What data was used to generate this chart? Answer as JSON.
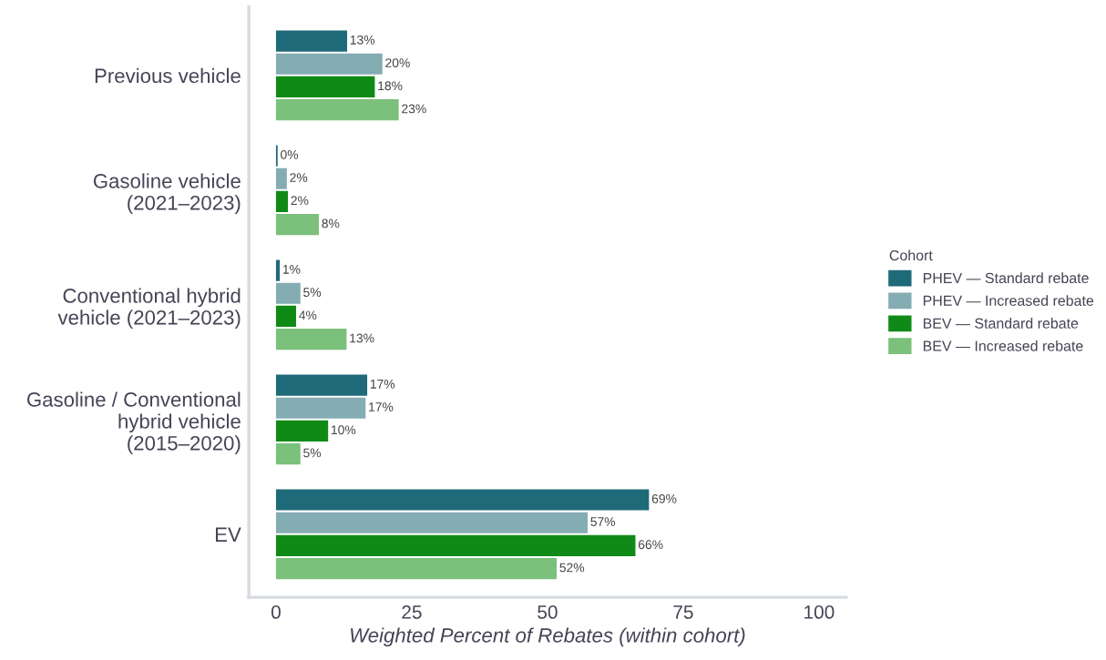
{
  "chart_data": {
    "type": "bar",
    "orientation": "horizontal",
    "xlabel": "Weighted Percent of Rebates (within cohort)",
    "legend_title": "Cohort",
    "legend": "right",
    "categories": [
      "Previous vehicle",
      "Gasoline vehicle\n(2021–2023)",
      "Conventional hybrid\nvehicle (2021–2023)",
      "Gasoline / Conventional\nhybrid vehicle\n(2015–2020)",
      "EV"
    ],
    "xlim": [
      -5,
      105
    ],
    "xticks": [
      0,
      25,
      50,
      75,
      100
    ],
    "grid": false,
    "series": [
      {
        "name": "PHEV — Standard rebate",
        "color": "#1f6a78",
        "values": [
          13.1,
          0.3,
          0.7,
          16.8,
          68.7
        ],
        "value_labels": [
          "13%",
          "0%",
          "1%",
          "17%",
          "69%"
        ]
      },
      {
        "name": "PHEV — Increased rebate",
        "color": "#84acb3",
        "values": [
          19.6,
          2.0,
          4.5,
          16.5,
          57.4
        ],
        "value_labels": [
          "20%",
          "2%",
          "5%",
          "17%",
          "57%"
        ]
      },
      {
        "name": "BEV — Standard rebate",
        "color": "#108a17",
        "values": [
          18.2,
          2.2,
          3.7,
          9.6,
          66.2
        ],
        "value_labels": [
          "18%",
          "2%",
          "4%",
          "10%",
          "66%"
        ]
      },
      {
        "name": "BEV — Increased rebate",
        "color": "#7bc07b",
        "values": [
          22.6,
          7.9,
          13.0,
          4.5,
          51.7
        ],
        "value_labels": [
          "23%",
          "8%",
          "13%",
          "5%",
          "52%"
        ]
      }
    ]
  }
}
